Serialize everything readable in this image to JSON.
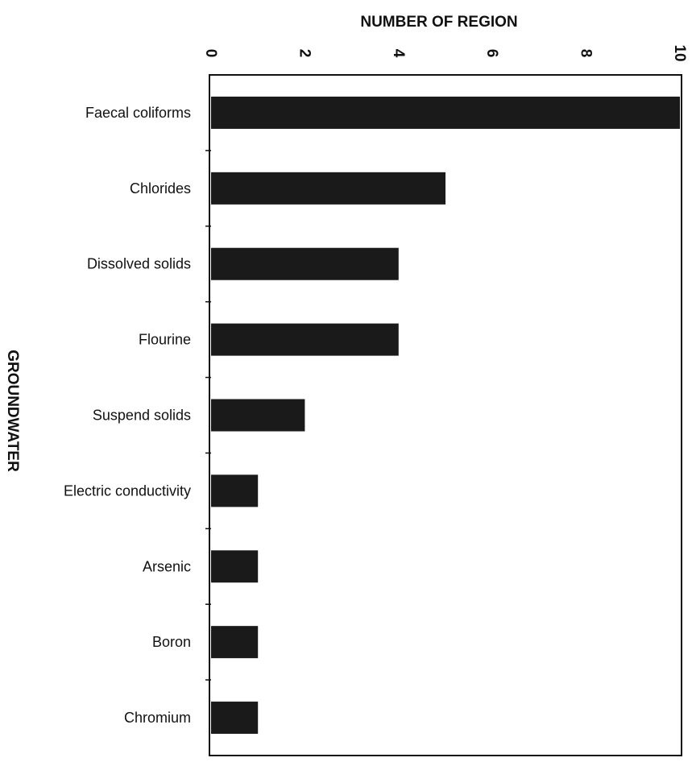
{
  "chart_data": {
    "type": "bar",
    "orientation": "horizontal",
    "title": "NUMBER OF REGION",
    "xlabel": "NUMBER OF REGION",
    "ylabel": "GROUNDWATER",
    "categories": [
      "Faecal coliforms",
      "Chlorides",
      "Dissolved solids",
      "Flourine",
      "Suspend solids",
      "Electric conductivity",
      "Arsenic",
      "Boron",
      "Chromium"
    ],
    "values": [
      10,
      5,
      4,
      4,
      2,
      1,
      1,
      1,
      1
    ],
    "xlim": [
      0,
      10
    ],
    "xticks": [
      "0",
      "2",
      "4",
      "6",
      "8",
      "10"
    ],
    "bar_color": "#1a1a1a",
    "grid": false,
    "legend": "none"
  }
}
